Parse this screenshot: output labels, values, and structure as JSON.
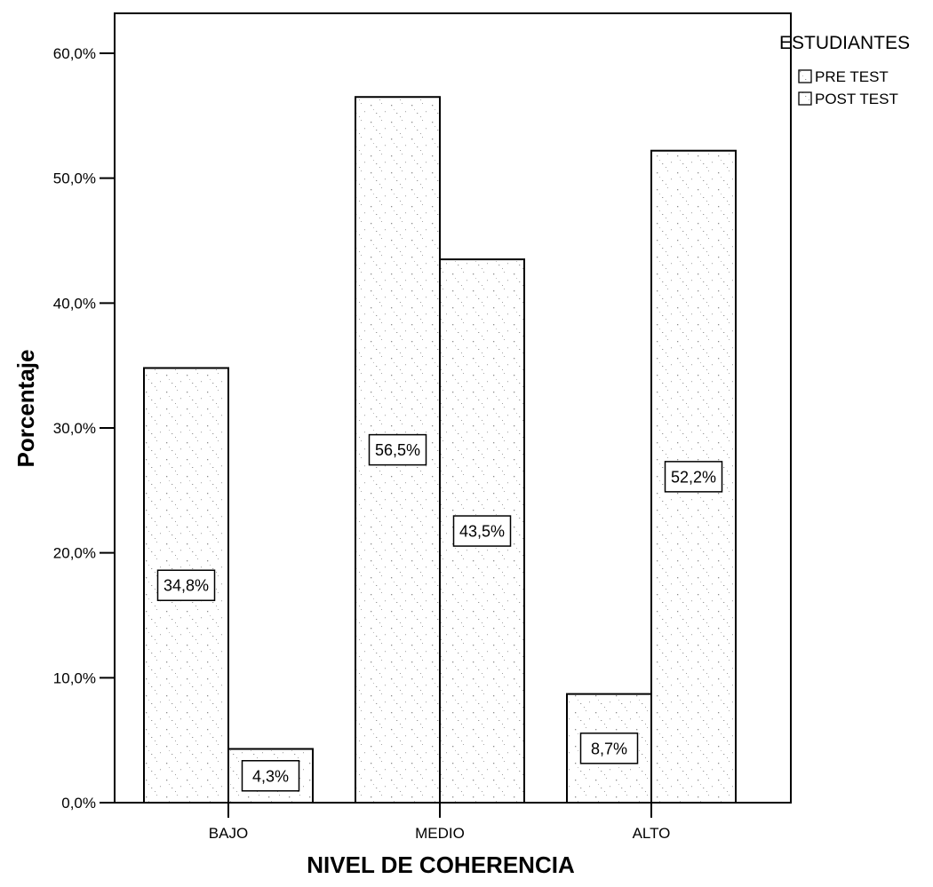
{
  "chart_data": {
    "type": "bar",
    "xlabel": "NIVEL DE COHERENCIA",
    "ylabel": "Porcentaje",
    "categories": [
      "BAJO",
      "MEDIO",
      "ALTO"
    ],
    "series": [
      {
        "name": "PRE TEST",
        "values": [
          34.8,
          56.5,
          8.7
        ]
      },
      {
        "name": "POST TEST",
        "values": [
          4.3,
          43.5,
          52.2
        ]
      }
    ],
    "data_labels": [
      [
        "34,8%",
        "56,5%",
        "8,7%"
      ],
      [
        "4,3%",
        "43,5%",
        "52,2%"
      ]
    ],
    "ylim": [
      0,
      65
    ],
    "yticks": [
      0,
      10,
      20,
      30,
      40,
      50,
      60
    ],
    "ytick_labels": [
      "0,0%",
      "10,0%",
      "20,0%",
      "30,0%",
      "40,0%",
      "50,0%",
      "60,0%"
    ],
    "legend": {
      "title": "ESTUDIANTES",
      "position": "top-right",
      "entries": [
        "PRE TEST",
        "POST TEST"
      ]
    },
    "grid": false
  }
}
